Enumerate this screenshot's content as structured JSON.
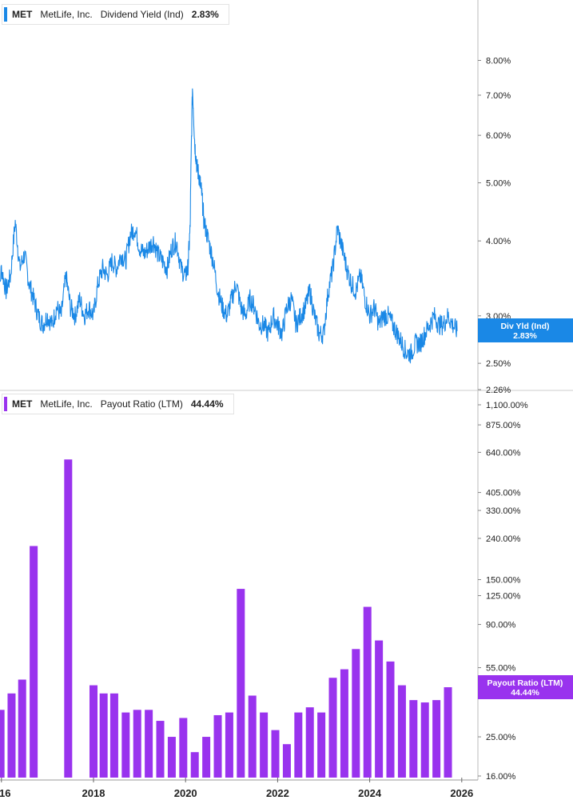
{
  "chart_data": [
    {
      "type": "line",
      "legend": {
        "ticker": "MET",
        "company": "MetLife, Inc.",
        "metric": "Dividend Yield (Ind)",
        "value": "2.83%"
      },
      "badge": {
        "label": "Div Yld (Ind)",
        "value": "2.83%"
      },
      "color": "#1a88e6",
      "scale": "log",
      "ylim": [
        2.26,
        9.2
      ],
      "y_ticks": [
        {
          "v": 8.0,
          "label": "8.00%"
        },
        {
          "v": 7.0,
          "label": "7.00%"
        },
        {
          "v": 6.0,
          "label": "6.00%"
        },
        {
          "v": 5.0,
          "label": "5.00%"
        },
        {
          "v": 4.0,
          "label": "4.00%"
        },
        {
          "v": 3.0,
          "label": "3.00%"
        },
        {
          "v": 2.5,
          "label": "2.50%"
        },
        {
          "v": 2.26,
          "label": "2.26%"
        }
      ],
      "x": [
        2015.9,
        2016.0,
        2016.1,
        2016.2,
        2016.3,
        2016.4,
        2016.5,
        2016.6,
        2016.7,
        2016.8,
        2016.9,
        2017.0,
        2017.1,
        2017.2,
        2017.3,
        2017.4,
        2017.5,
        2017.6,
        2017.7,
        2017.8,
        2017.9,
        2018.0,
        2018.1,
        2018.2,
        2018.3,
        2018.4,
        2018.5,
        2018.6,
        2018.7,
        2018.8,
        2018.9,
        2019.0,
        2019.1,
        2019.2,
        2019.3,
        2019.4,
        2019.5,
        2019.6,
        2019.7,
        2019.8,
        2019.9,
        2020.0,
        2020.05,
        2020.1,
        2020.15,
        2020.2,
        2020.25,
        2020.3,
        2020.35,
        2020.4,
        2020.5,
        2020.6,
        2020.7,
        2020.8,
        2020.9,
        2021.0,
        2021.1,
        2021.2,
        2021.3,
        2021.4,
        2021.5,
        2021.6,
        2021.7,
        2021.8,
        2021.9,
        2022.0,
        2022.1,
        2022.2,
        2022.3,
        2022.4,
        2022.5,
        2022.6,
        2022.7,
        2022.8,
        2022.9,
        2023.0,
        2023.1,
        2023.2,
        2023.3,
        2023.4,
        2023.5,
        2023.6,
        2023.7,
        2023.8,
        2023.9,
        2024.0,
        2024.1,
        2024.2,
        2024.3,
        2024.4,
        2024.5,
        2024.6,
        2024.7,
        2024.8,
        2024.9,
        2025.0,
        2025.1,
        2025.2,
        2025.3,
        2025.4,
        2025.5,
        2025.6,
        2025.7,
        2025.8,
        2025.9
      ],
      "values": [
        3.0,
        3.6,
        3.3,
        3.5,
        4.3,
        3.6,
        3.8,
        3.4,
        3.2,
        3.0,
        2.9,
        3.0,
        2.9,
        3.1,
        3.0,
        3.5,
        3.1,
        3.0,
        3.2,
        3.0,
        3.1,
        3.0,
        3.4,
        3.6,
        3.5,
        3.7,
        3.6,
        3.8,
        3.7,
        4.1,
        4.2,
        3.9,
        3.8,
        3.9,
        4.0,
        3.8,
        3.7,
        3.6,
        3.9,
        4.0,
        3.6,
        3.5,
        3.6,
        4.2,
        7.2,
        5.8,
        5.3,
        5.1,
        4.8,
        4.3,
        4.0,
        3.7,
        3.3,
        3.1,
        3.0,
        3.2,
        3.4,
        3.1,
        3.0,
        3.2,
        3.1,
        2.9,
        2.9,
        2.8,
        3.0,
        2.9,
        2.8,
        3.1,
        3.2,
        2.9,
        3.0,
        3.1,
        3.3,
        3.0,
        2.8,
        2.8,
        3.3,
        3.6,
        4.2,
        3.9,
        3.6,
        3.4,
        3.3,
        3.5,
        3.2,
        3.0,
        3.1,
        2.9,
        3.0,
        3.0,
        2.9,
        2.8,
        2.7,
        2.6,
        2.6,
        2.7,
        2.7,
        2.8,
        2.9,
        3.0,
        2.9,
        2.9,
        3.0,
        2.9,
        2.83
      ]
    },
    {
      "type": "bar",
      "legend": {
        "ticker": "MET",
        "company": "MetLife, Inc.",
        "metric": "Payout Ratio (LTM)",
        "value": "44.44%"
      },
      "badge": {
        "label": "Payout Ratio (LTM)",
        "value": "44.44%"
      },
      "color": "#9933ee",
      "scale": "log",
      "ylim": [
        16,
        1100
      ],
      "y_ticks": [
        {
          "v": 1100,
          "label": "1,100.00%"
        },
        {
          "v": 875,
          "label": "875.00%"
        },
        {
          "v": 640,
          "label": "640.00%"
        },
        {
          "v": 405,
          "label": "405.00%"
        },
        {
          "v": 330,
          "label": "330.00%"
        },
        {
          "v": 240,
          "label": "240.00%"
        },
        {
          "v": 150,
          "label": "150.00%"
        },
        {
          "v": 125,
          "label": "125.00%"
        },
        {
          "v": 90,
          "label": "90.00%"
        },
        {
          "v": 55,
          "label": "55.00%"
        },
        {
          "v": 40,
          "label": "40.00%"
        },
        {
          "v": 25,
          "label": "25.00%"
        },
        {
          "v": 16,
          "label": "16.00%"
        }
      ],
      "x": [
        2015.85,
        2015.98,
        2016.22,
        2016.45,
        2016.7,
        2017.45,
        2018.0,
        2018.22,
        2018.45,
        2018.7,
        2018.95,
        2019.2,
        2019.45,
        2019.7,
        2019.95,
        2020.2,
        2020.45,
        2020.7,
        2020.95,
        2021.2,
        2021.45,
        2021.7,
        2021.95,
        2022.2,
        2022.45,
        2022.7,
        2022.95,
        2023.2,
        2023.45,
        2023.7,
        2023.95,
        2024.2,
        2024.45,
        2024.7,
        2024.95,
        2025.2,
        2025.45,
        2025.7
      ],
      "values": [
        34,
        34,
        41,
        48,
        220,
        590,
        45,
        41,
        41,
        33,
        34,
        34,
        30,
        25,
        31,
        21,
        25,
        32,
        33,
        135,
        40,
        33,
        27,
        23,
        33,
        35,
        33,
        49,
        54,
        68,
        110,
        75,
        59,
        45,
        38,
        37,
        38,
        44
      ]
    }
  ],
  "x_axis": {
    "ticks": [
      "16",
      "2018",
      "2020",
      "2022",
      "2024",
      "2026"
    ]
  }
}
